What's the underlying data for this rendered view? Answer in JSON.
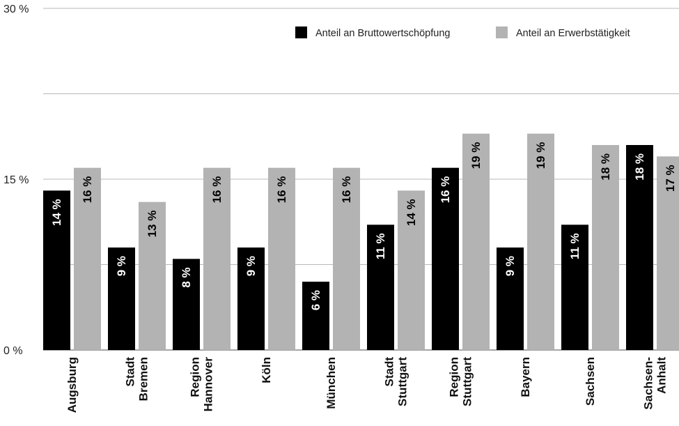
{
  "chart_data": {
    "type": "bar",
    "categories": [
      [
        "Augsburg"
      ],
      [
        "Stadt",
        "Bremen"
      ],
      [
        "Region",
        "Hannover"
      ],
      [
        "Köln"
      ],
      [
        "München"
      ],
      [
        "Stadt",
        "Stuttgart"
      ],
      [
        "Region",
        "Stuttgart"
      ],
      [
        "Bayern"
      ],
      [
        "Sachsen"
      ],
      [
        "Sachsen-",
        "Anhalt"
      ]
    ],
    "series": [
      {
        "name": "Anteil an Bruttowertschöpfung",
        "color": "#000000",
        "label_color": "#ffffff",
        "values": [
          14,
          9,
          8,
          9,
          6,
          11,
          16,
          9,
          11,
          18
        ],
        "labels": [
          "14 %",
          "9 %",
          "8 %",
          "9 %",
          "6 %",
          "11 %",
          "16 %",
          "9 %",
          "11 %",
          "18 %"
        ]
      },
      {
        "name": "Anteil an Erwerbstätigkeit",
        "color": "#b3b3b3",
        "label_color": "#000000",
        "values": [
          16,
          13,
          16,
          16,
          16,
          14,
          19,
          19,
          18,
          17
        ],
        "labels": [
          "16 %",
          "13 %",
          "16 %",
          "16 %",
          "16 %",
          "14 %",
          "19 %",
          "19 %",
          "18 %",
          "17 %"
        ]
      }
    ],
    "ylim": [
      0,
      30
    ],
    "yticks": [
      0,
      15,
      30
    ],
    "ytick_labels": [
      "0 %",
      "15 %",
      "30 %"
    ],
    "gridlines": [
      0,
      7.5,
      15,
      22.5,
      30
    ],
    "grid": true,
    "legend_position": "top-right",
    "title": "",
    "xlabel": "",
    "ylabel": ""
  }
}
